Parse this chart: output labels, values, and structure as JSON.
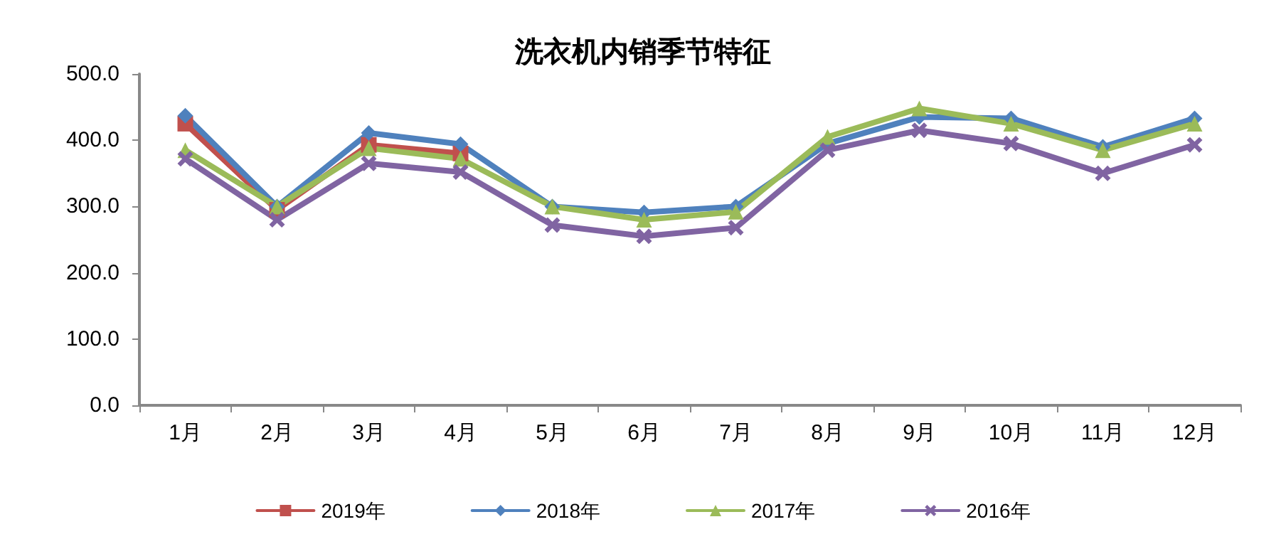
{
  "chart_data": {
    "type": "line",
    "title": "洗衣机内销季节特征",
    "categories": [
      "1月",
      "2月",
      "3月",
      "4月",
      "5月",
      "6月",
      "7月",
      "8月",
      "9月",
      "10月",
      "11月",
      "12月"
    ],
    "series": [
      {
        "name": "2019年",
        "color": "#c0504d",
        "marker": "square",
        "values": [
          425,
          295,
          393,
          380,
          null,
          null,
          null,
          null,
          null,
          null,
          null,
          null
        ]
      },
      {
        "name": "2018年",
        "color": "#4f81bd",
        "marker": "diamond",
        "values": [
          437,
          300,
          411,
          394,
          300,
          291,
          300,
          395,
          435,
          433,
          390,
          433
        ]
      },
      {
        "name": "2017年",
        "color": "#9bbb59",
        "marker": "triangle",
        "values": [
          385,
          300,
          388,
          372,
          300,
          280,
          292,
          405,
          448,
          425,
          385,
          425
        ]
      },
      {
        "name": "2016年",
        "color": "#8064a2",
        "marker": "cross",
        "values": [
          372,
          280,
          365,
          352,
          272,
          255,
          268,
          385,
          415,
          395,
          350,
          393
        ]
      }
    ],
    "ylim": [
      0,
      500
    ],
    "yticks": [
      {
        "value": 0,
        "label": "0.0"
      },
      {
        "value": 100,
        "label": "100.0"
      },
      {
        "value": 200,
        "label": "200.0"
      },
      {
        "value": 300,
        "label": "300.0"
      },
      {
        "value": 400,
        "label": "400.0"
      },
      {
        "value": 500,
        "label": "500.0"
      }
    ],
    "grid": false,
    "legend": "bottom"
  }
}
